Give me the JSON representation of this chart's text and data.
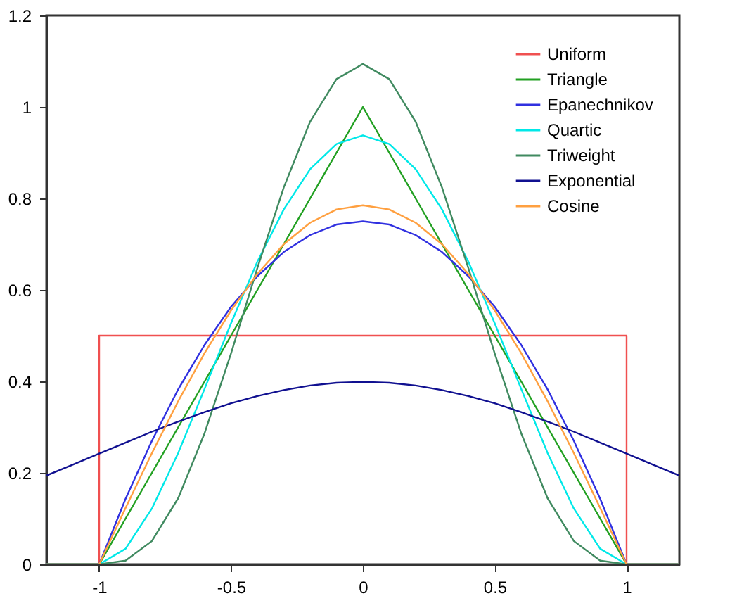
{
  "chart_data": {
    "type": "line",
    "xlim": [
      -1.2,
      1.2
    ],
    "ylim": [
      0,
      1.2
    ],
    "xticks": [
      -1,
      -0.5,
      0,
      0.5,
      1
    ],
    "yticks": [
      0,
      0.2,
      0.4,
      0.6,
      0.8,
      1,
      1.2
    ],
    "grid": false,
    "legend": "top right",
    "line_style": "solid",
    "marker": "none",
    "x": [
      -1.2,
      -1.1,
      -1.0,
      -0.9,
      -0.8,
      -0.7,
      -0.6,
      -0.5,
      -0.4,
      -0.3,
      -0.2,
      -0.1,
      0,
      0.1,
      0.2,
      0.3,
      0.4,
      0.5,
      0.6,
      0.7,
      0.8,
      0.9,
      1.0,
      1.1,
      1.2
    ],
    "series": [
      {
        "name": "Uniform",
        "color": "#f05050",
        "x": [
          -1.2,
          -1,
          -1,
          1,
          1,
          1.2
        ],
        "values": [
          0,
          0,
          0.5,
          0.5,
          0,
          0
        ]
      },
      {
        "name": "Triangle",
        "color": "#22a022",
        "values": [
          0,
          0,
          0,
          0.1,
          0.2,
          0.3,
          0.4,
          0.5,
          0.6,
          0.7,
          0.8,
          0.9,
          1,
          0.9,
          0.8,
          0.7,
          0.6,
          0.5,
          0.4,
          0.3,
          0.2,
          0.1,
          0,
          0,
          0
        ]
      },
      {
        "name": "Epanechnikov",
        "color": "#3030e0",
        "values": [
          0,
          0,
          0,
          0.143,
          0.27,
          0.383,
          0.48,
          0.563,
          0.63,
          0.683,
          0.72,
          0.743,
          0.75,
          0.743,
          0.72,
          0.683,
          0.63,
          0.563,
          0.48,
          0.383,
          0.27,
          0.143,
          0,
          0,
          0
        ]
      },
      {
        "name": "Quartic",
        "color": "#00e8e8",
        "values": [
          0,
          0,
          0,
          0.034,
          0.122,
          0.244,
          0.384,
          0.527,
          0.662,
          0.776,
          0.864,
          0.919,
          0.938,
          0.919,
          0.864,
          0.776,
          0.662,
          0.527,
          0.384,
          0.244,
          0.122,
          0.034,
          0,
          0,
          0
        ]
      },
      {
        "name": "Triweight",
        "color": "#408a60",
        "values": [
          0,
          0,
          0,
          0.008,
          0.051,
          0.145,
          0.287,
          0.461,
          0.648,
          0.824,
          0.968,
          1.061,
          1.094,
          1.061,
          0.968,
          0.824,
          0.648,
          0.461,
          0.287,
          0.145,
          0.051,
          0.008,
          0,
          0,
          0
        ]
      },
      {
        "name": "Exponential",
        "color": "#101090",
        "values": [
          0.194,
          0.218,
          0.242,
          0.266,
          0.29,
          0.312,
          0.333,
          0.352,
          0.368,
          0.381,
          0.391,
          0.397,
          0.399,
          0.397,
          0.391,
          0.381,
          0.368,
          0.352,
          0.333,
          0.312,
          0.29,
          0.266,
          0.242,
          0.218,
          0.194
        ]
      },
      {
        "name": "Cosine",
        "color": "#ffa040",
        "values": [
          0,
          0,
          0,
          0.123,
          0.243,
          0.357,
          0.462,
          0.555,
          0.635,
          0.7,
          0.747,
          0.776,
          0.785,
          0.776,
          0.747,
          0.7,
          0.635,
          0.555,
          0.462,
          0.357,
          0.243,
          0.123,
          0,
          0,
          0
        ]
      }
    ]
  }
}
